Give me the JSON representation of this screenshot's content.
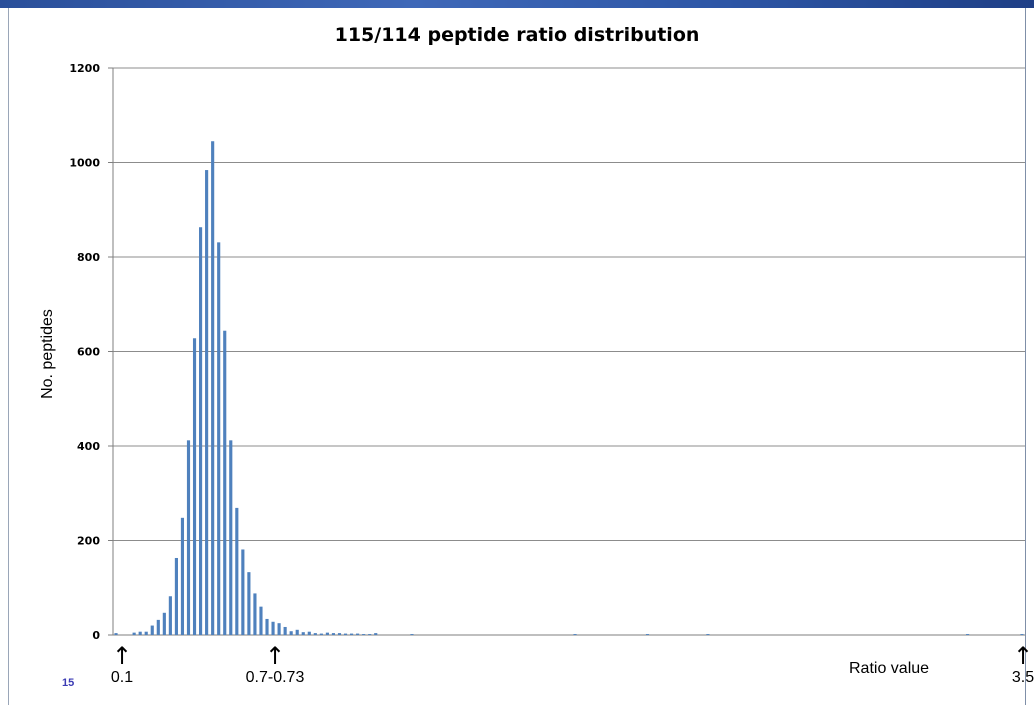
{
  "chart_data": {
    "type": "bar",
    "title": "115/114 peptide ratio distribution",
    "ylabel": "No. peptides",
    "xlabel": "Ratio value",
    "ylim": [
      0,
      1200
    ],
    "yticks": [
      0,
      200,
      400,
      600,
      800,
      1000,
      1200
    ],
    "grid": true,
    "legend": "none",
    "bar_color": "#4f81bd",
    "grid_color": "#8c8c8c",
    "values": [
      4,
      0,
      0,
      5,
      7,
      7,
      20,
      32,
      47,
      82,
      163,
      248,
      412,
      628,
      863,
      984,
      1045,
      831,
      644,
      412,
      269,
      181,
      133,
      88,
      60,
      34,
      28,
      25,
      17,
      8,
      11,
      6,
      7,
      4,
      3,
      5,
      4,
      4,
      3,
      3,
      3,
      2,
      2,
      4,
      0,
      0,
      0,
      0,
      0,
      2,
      0,
      0,
      0,
      0,
      0,
      0,
      0,
      0,
      0,
      0,
      0,
      0,
      0,
      0,
      0,
      0,
      0,
      0,
      0,
      0,
      0,
      0,
      0,
      0,
      0,
      0,
      2,
      0,
      0,
      0,
      0,
      0,
      0,
      0,
      0,
      0,
      0,
      0,
      2,
      0,
      0,
      0,
      0,
      0,
      0,
      0,
      0,
      0,
      2,
      0,
      0,
      0,
      0,
      0,
      0,
      0,
      0,
      0,
      0,
      0,
      0,
      0,
      0,
      0,
      0,
      0,
      0,
      0,
      0,
      0,
      0,
      0,
      0,
      0,
      0,
      0,
      0,
      0,
      0,
      0,
      0,
      0,
      0,
      0,
      0,
      0,
      0,
      0,
      0,
      0,
      0,
      2,
      0,
      0,
      0,
      0,
      0,
      0,
      0,
      0,
      2
    ]
  },
  "annotations": [
    {
      "arrow": "↑",
      "label": "0.1"
    },
    {
      "arrow": "↑",
      "label": "0.7-0.73"
    },
    {
      "arrow": "↑",
      "label": "3.5"
    }
  ],
  "slide_number": "15"
}
